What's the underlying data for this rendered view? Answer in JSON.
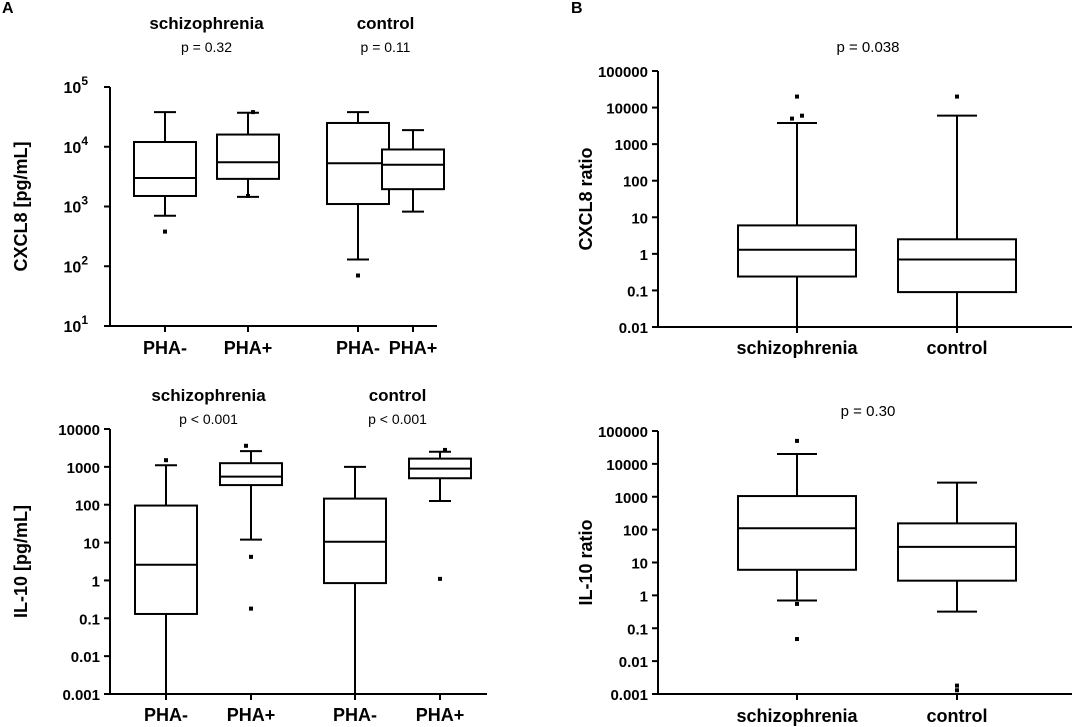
{
  "panel_letters": {
    "a": "A",
    "b": "B"
  },
  "chart_data": [
    {
      "id": "A1",
      "type": "boxplot",
      "title": "",
      "ylabel": "CXCL8 [pg/mL]",
      "xlabel": "",
      "yscale": "log",
      "ylim": [
        10,
        100000
      ],
      "yticks": [
        {
          "value": 10,
          "base": "10",
          "exp": "1"
        },
        {
          "value": 100,
          "base": "10",
          "exp": "2"
        },
        {
          "value": 1000,
          "base": "10",
          "exp": "3"
        },
        {
          "value": 10000,
          "base": "10",
          "exp": "4"
        },
        {
          "value": 100000,
          "base": "10",
          "exp": "5"
        }
      ],
      "groups": [
        {
          "name": "schizophrenia",
          "p_label": "p = 0.32"
        },
        {
          "name": "control",
          "p_label": "p = 0.11"
        }
      ],
      "categories": [
        "PHA-",
        "PHA+",
        "PHA-",
        "PHA+"
      ],
      "boxes": [
        {
          "min": 700,
          "q1": 1500,
          "median": 3000,
          "q3": 12000,
          "max": 38000,
          "outliers": [
            380
          ]
        },
        {
          "min": 1450,
          "q1": 2900,
          "median": 5500,
          "q3": 16000,
          "max": 37000,
          "outliers": [
            1500,
            38000
          ]
        },
        {
          "min": 130,
          "q1": 1100,
          "median": 5300,
          "q3": 25000,
          "max": 38000,
          "outliers": [
            70
          ]
        },
        {
          "min": 820,
          "q1": 1950,
          "median": 5000,
          "q3": 9000,
          "max": 19000,
          "outliers": []
        }
      ]
    },
    {
      "id": "B1",
      "type": "boxplot",
      "title": "p = 0.038",
      "ylabel": "CXCL8 ratio",
      "xlabel": "",
      "yscale": "log",
      "ylim": [
        0.01,
        100000
      ],
      "yticks": [
        {
          "value": 0.01,
          "label": "0.01"
        },
        {
          "value": 0.1,
          "label": "0.1"
        },
        {
          "value": 1,
          "label": "1"
        },
        {
          "value": 10,
          "label": "10"
        },
        {
          "value": 100,
          "label": "100"
        },
        {
          "value": 1000,
          "label": "1000"
        },
        {
          "value": 10000,
          "label": "10000"
        },
        {
          "value": 100000,
          "label": "100000"
        }
      ],
      "groups": [],
      "categories": [
        "schizophrenia",
        "control"
      ],
      "boxes": [
        {
          "min": 0.01,
          "q1": 0.24,
          "median": 1.3,
          "q3": 6,
          "max": 3800,
          "outliers": [
            5000,
            6000,
            20000
          ]
        },
        {
          "min": 0.01,
          "q1": 0.09,
          "median": 0.7,
          "q3": 2.5,
          "max": 6000,
          "outliers": [
            20000
          ]
        }
      ]
    },
    {
      "id": "A2",
      "type": "boxplot",
      "title": "",
      "ylabel": "IL-10 [pg/mL]",
      "xlabel": "",
      "yscale": "log",
      "ylim": [
        0.001,
        10000
      ],
      "yticks": [
        {
          "value": 0.001,
          "label": "0.001"
        },
        {
          "value": 0.01,
          "label": "0.01"
        },
        {
          "value": 0.1,
          "label": "0.1"
        },
        {
          "value": 1,
          "label": "1"
        },
        {
          "value": 10,
          "label": "10"
        },
        {
          "value": 100,
          "label": "100"
        },
        {
          "value": 1000,
          "label": "1000"
        },
        {
          "value": 10000,
          "label": "10000"
        }
      ],
      "groups": [
        {
          "name": "schizophrenia",
          "p_label": "p < 0.001"
        },
        {
          "name": "control",
          "p_label": "p < 0.001"
        }
      ],
      "categories": [
        "PHA-",
        "PHA+",
        "PHA-",
        "PHA+"
      ],
      "boxes": [
        {
          "min": 0.001,
          "q1": 0.13,
          "median": 2.6,
          "q3": 95,
          "max": 1100,
          "outliers": [
            1500
          ]
        },
        {
          "min": 12,
          "q1": 330,
          "median": 550,
          "q3": 1250,
          "max": 2600,
          "outliers": [
            0.18,
            4.2,
            3600
          ]
        },
        {
          "min": 0.001,
          "q1": 0.85,
          "median": 10.5,
          "q3": 145,
          "max": 1000,
          "outliers": []
        },
        {
          "min": 125,
          "q1": 500,
          "median": 900,
          "q3": 1650,
          "max": 2500,
          "outliers": [
            1.1,
            2800
          ]
        }
      ]
    },
    {
      "id": "B2",
      "type": "boxplot",
      "title": "p = 0.30",
      "ylabel": "IL-10 ratio",
      "xlabel": "",
      "yscale": "log",
      "ylim": [
        0.001,
        100000
      ],
      "yticks": [
        {
          "value": 0.001,
          "label": "0.001"
        },
        {
          "value": 0.01,
          "label": "0.01"
        },
        {
          "value": 0.1,
          "label": "0.1"
        },
        {
          "value": 1,
          "label": "1"
        },
        {
          "value": 10,
          "label": "10"
        },
        {
          "value": 100,
          "label": "100"
        },
        {
          "value": 1000,
          "label": "1000"
        },
        {
          "value": 10000,
          "label": "10000"
        },
        {
          "value": 100000,
          "label": "100000"
        }
      ],
      "groups": [],
      "categories": [
        "schizophrenia",
        "control"
      ],
      "boxes": [
        {
          "min": 0.7,
          "q1": 6,
          "median": 110,
          "q3": 1050,
          "max": 20000,
          "outliers": [
            0.55,
            0.047,
            50000
          ]
        },
        {
          "min": 0.32,
          "q1": 2.8,
          "median": 30,
          "q3": 155,
          "max": 2700,
          "outliers": [
            0.0013,
            0.0018
          ]
        }
      ]
    }
  ]
}
